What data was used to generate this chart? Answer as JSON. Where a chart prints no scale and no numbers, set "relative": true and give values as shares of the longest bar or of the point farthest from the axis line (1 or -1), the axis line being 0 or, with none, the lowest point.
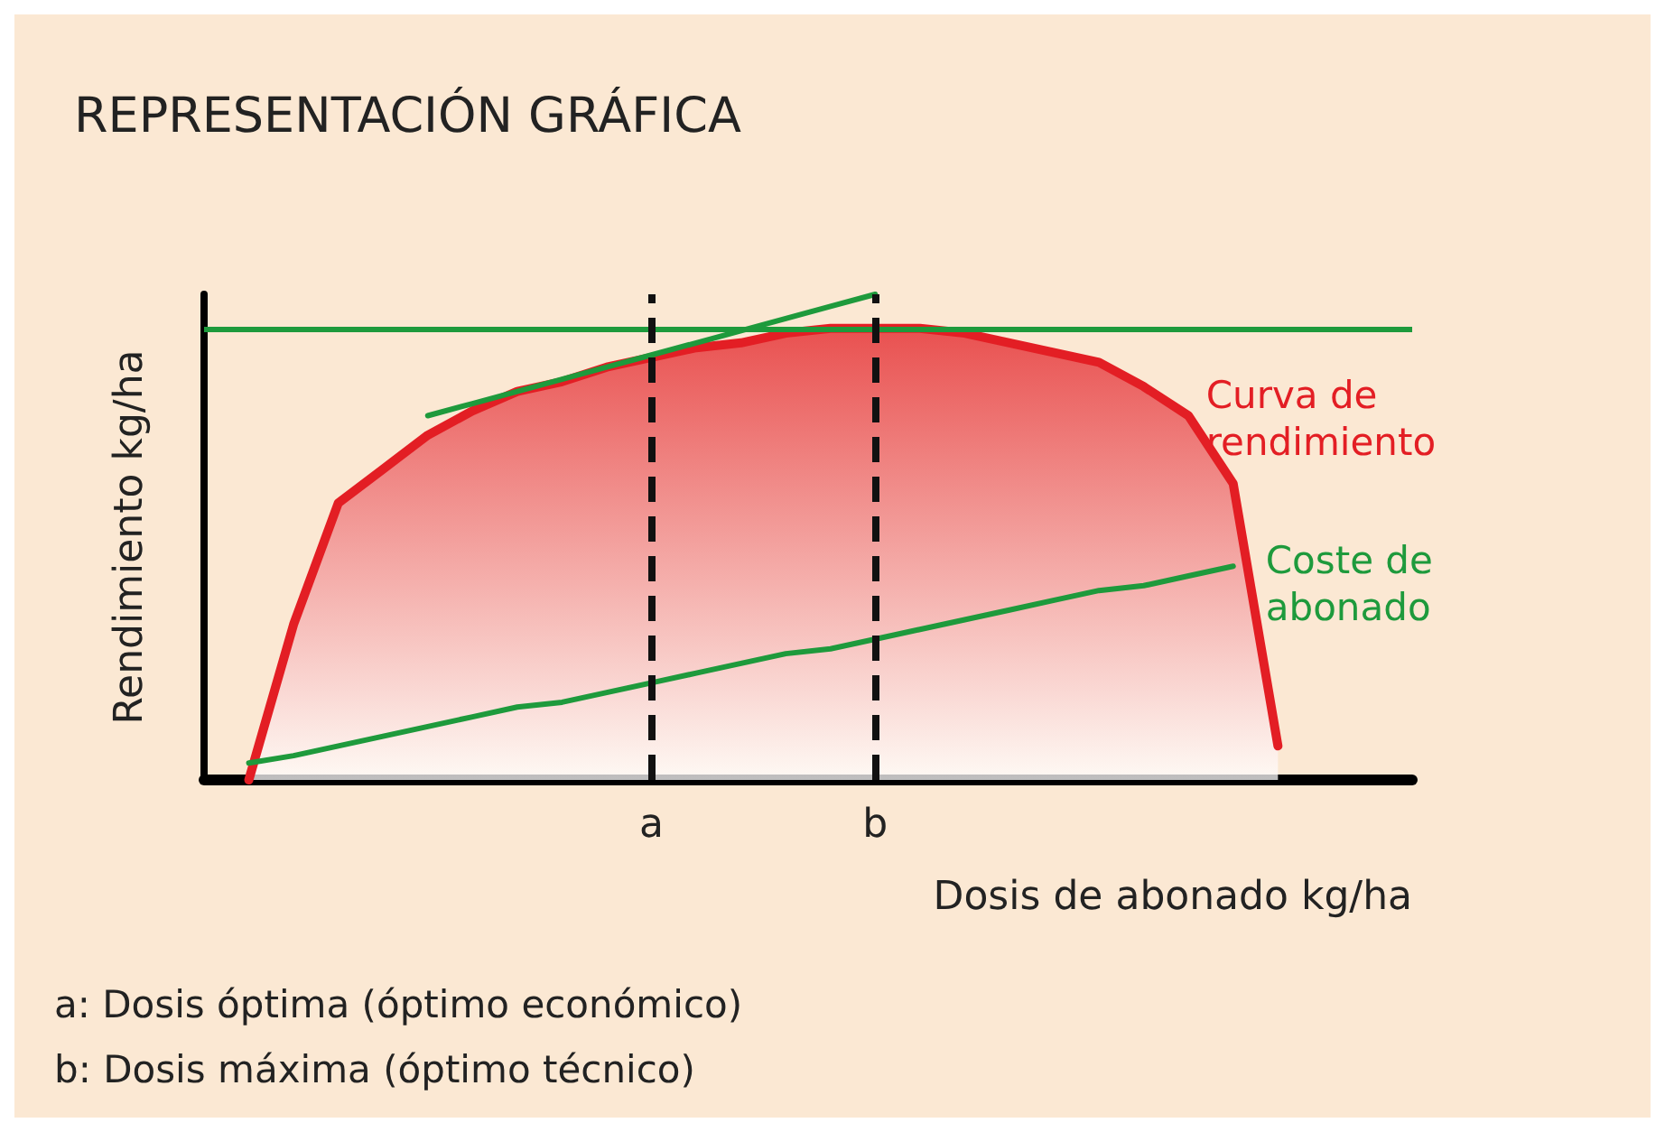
{
  "chart_data": {
    "type": "area",
    "title": "REPRESENTACIÓN GRÁFICA",
    "xlabel": "Dosis de abonado kg/ha",
    "ylabel": "Rendimiento kg/ha",
    "relative": true,
    "grid": false,
    "legend": false,
    "marker": "none",
    "categories": [
      null,
      null,
      null,
      null,
      null,
      null,
      null,
      null,
      null,
      null,
      "a",
      null,
      null,
      null,
      null,
      "b",
      null,
      null,
      null,
      null,
      null,
      null,
      null,
      null,
      null,
      null,
      null,
      null
    ],
    "series": [
      {
        "name": "Curva de rendimiento",
        "color": "#e31e24",
        "values": [
          null,
          0,
          0.32,
          0.57,
          0.64,
          0.71,
          0.76,
          0.8,
          0.82,
          0.85,
          0.87,
          0.89,
          0.9,
          0.92,
          0.93,
          0.93,
          0.93,
          0.92,
          0.9,
          0.88,
          0.86,
          0.81,
          0.75,
          0.61,
          0.07,
          null,
          null,
          null
        ]
      },
      {
        "name": "Coste de abonado",
        "type": "line",
        "color": "#1e9a3c",
        "values": [
          null,
          0.035,
          0.05,
          0.07,
          0.09,
          0.11,
          0.13,
          0.15,
          0.16,
          0.18,
          0.2,
          0.22,
          0.24,
          0.26,
          0.27,
          0.29,
          0.31,
          0.33,
          0.35,
          0.37,
          0.39,
          0.4,
          0.42,
          0.44,
          null,
          null,
          null,
          null
        ]
      },
      {
        "type": "line",
        "color": "#1e9a3c",
        "values": [
          null,
          null,
          null,
          null,
          null,
          0.75,
          0.775,
          0.8,
          0.825,
          0.85,
          0.875,
          0.9,
          0.925,
          0.95,
          0.975,
          1.0,
          null,
          null,
          null,
          null,
          null,
          null,
          null,
          null,
          null,
          null,
          null,
          null
        ]
      }
    ],
    "ref_lines": [
      {
        "axis": "y",
        "value": 0.93,
        "label": null,
        "color": "#1e9a3c",
        "line_style": "solid"
      },
      {
        "axis": "x",
        "value": "a",
        "label": null,
        "color": "#111111",
        "line_style": "dashed"
      },
      {
        "axis": "x",
        "value": "b",
        "label": null,
        "color": "#111111",
        "line_style": "dashed"
      }
    ],
    "annotations": [
      "a: Dosis óptima (óptimo económico)",
      "b: Dosis máxima (óptimo técnico)"
    ]
  }
}
